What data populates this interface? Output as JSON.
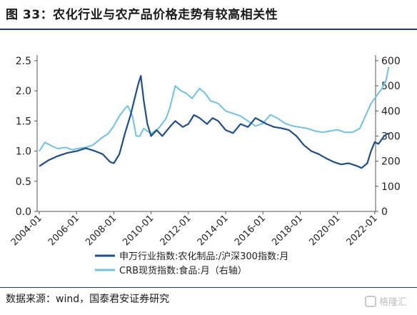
{
  "figure": {
    "title": "图 33：农化行业与农产品价格走势有较高相关性",
    "source": "数据来源：wind，国泰君安证券研究",
    "watermark": "格隆汇"
  },
  "colors": {
    "series1": "#1f4e8c",
    "series2": "#6ec1e4",
    "rule": "#1f3a6b",
    "axis": "#555555"
  },
  "chart_data": {
    "type": "line",
    "x_tick_labels": [
      "2004-01",
      "2006-01",
      "2008-01",
      "2010-01",
      "2012-01",
      "2014-01",
      "2016-01",
      "2018-01",
      "2020-01",
      "2022-01"
    ],
    "y_left": {
      "ylim": [
        0,
        2.5
      ],
      "ticks": [
        "0.0",
        "0.5",
        "1.0",
        "1.5",
        "2.0",
        "2.5"
      ]
    },
    "y_right": {
      "ylim": [
        0,
        600
      ],
      "ticks": [
        "0",
        "100",
        "200",
        "300",
        "400",
        "500",
        "600"
      ]
    },
    "grid": false,
    "legend_position": "bottom-center",
    "series": [
      {
        "name": "申万行业指数:农化制品:/沪深300指数:月",
        "axis": "left",
        "points": [
          [
            2004.0,
            0.75
          ],
          [
            2004.5,
            0.85
          ],
          [
            2005.0,
            0.92
          ],
          [
            2005.5,
            0.97
          ],
          [
            2006.0,
            1.0
          ],
          [
            2006.5,
            1.05
          ],
          [
            2007.0,
            1.0
          ],
          [
            2007.4,
            0.95
          ],
          [
            2007.8,
            0.82
          ],
          [
            2008.0,
            0.8
          ],
          [
            2008.3,
            0.95
          ],
          [
            2008.6,
            1.3
          ],
          [
            2008.9,
            1.6
          ],
          [
            2009.1,
            1.85
          ],
          [
            2009.3,
            2.1
          ],
          [
            2009.45,
            2.25
          ],
          [
            2009.6,
            1.85
          ],
          [
            2009.8,
            1.45
          ],
          [
            2010.0,
            1.25
          ],
          [
            2010.3,
            1.35
          ],
          [
            2010.6,
            1.25
          ],
          [
            2011.0,
            1.4
          ],
          [
            2011.3,
            1.5
          ],
          [
            2011.7,
            1.4
          ],
          [
            2012.0,
            1.45
          ],
          [
            2012.3,
            1.6
          ],
          [
            2012.6,
            1.55
          ],
          [
            2013.0,
            1.45
          ],
          [
            2013.3,
            1.55
          ],
          [
            2013.6,
            1.5
          ],
          [
            2014.0,
            1.35
          ],
          [
            2014.4,
            1.3
          ],
          [
            2014.8,
            1.45
          ],
          [
            2015.2,
            1.4
          ],
          [
            2015.6,
            1.55
          ],
          [
            2015.9,
            1.5
          ],
          [
            2016.2,
            1.45
          ],
          [
            2016.6,
            1.4
          ],
          [
            2017.0,
            1.38
          ],
          [
            2017.4,
            1.35
          ],
          [
            2017.8,
            1.25
          ],
          [
            2018.2,
            1.1
          ],
          [
            2018.6,
            1.0
          ],
          [
            2019.0,
            0.95
          ],
          [
            2019.4,
            0.88
          ],
          [
            2019.8,
            0.82
          ],
          [
            2020.2,
            0.78
          ],
          [
            2020.6,
            0.8
          ],
          [
            2021.0,
            0.76
          ],
          [
            2021.3,
            0.72
          ],
          [
            2021.6,
            0.8
          ],
          [
            2021.8,
            1.0
          ],
          [
            2022.0,
            1.15
          ],
          [
            2022.2,
            1.12
          ],
          [
            2022.5,
            1.25
          ],
          [
            2022.75,
            1.3
          ]
        ]
      },
      {
        "name": "CRB现货指数:食品:月（右轴）",
        "axis": "right",
        "points": [
          [
            2004.0,
            240
          ],
          [
            2004.3,
            275
          ],
          [
            2004.7,
            260
          ],
          [
            2005.0,
            250
          ],
          [
            2005.4,
            255
          ],
          [
            2005.8,
            245
          ],
          [
            2006.0,
            250
          ],
          [
            2006.5,
            255
          ],
          [
            2006.9,
            265
          ],
          [
            2007.3,
            290
          ],
          [
            2007.7,
            310
          ],
          [
            2008.0,
            340
          ],
          [
            2008.3,
            380
          ],
          [
            2008.6,
            410
          ],
          [
            2008.75,
            420
          ],
          [
            2009.0,
            380
          ],
          [
            2009.2,
            300
          ],
          [
            2009.4,
            300
          ],
          [
            2009.6,
            330
          ],
          [
            2010.0,
            310
          ],
          [
            2010.4,
            330
          ],
          [
            2010.8,
            370
          ],
          [
            2011.0,
            410
          ],
          [
            2011.3,
            500
          ],
          [
            2011.6,
            480
          ],
          [
            2011.9,
            470
          ],
          [
            2012.2,
            450
          ],
          [
            2012.6,
            490
          ],
          [
            2012.9,
            470
          ],
          [
            2013.2,
            440
          ],
          [
            2013.6,
            430
          ],
          [
            2014.0,
            400
          ],
          [
            2014.4,
            390
          ],
          [
            2014.8,
            380
          ],
          [
            2015.2,
            360
          ],
          [
            2015.6,
            340
          ],
          [
            2016.0,
            350
          ],
          [
            2016.4,
            385
          ],
          [
            2016.8,
            370
          ],
          [
            2017.2,
            350
          ],
          [
            2017.6,
            340
          ],
          [
            2018.0,
            335
          ],
          [
            2018.4,
            330
          ],
          [
            2018.8,
            320
          ],
          [
            2019.2,
            315
          ],
          [
            2019.6,
            320
          ],
          [
            2020.0,
            325
          ],
          [
            2020.4,
            315
          ],
          [
            2020.8,
            315
          ],
          [
            2021.2,
            330
          ],
          [
            2021.5,
            380
          ],
          [
            2021.8,
            430
          ],
          [
            2022.1,
            460
          ],
          [
            2022.4,
            490
          ],
          [
            2022.6,
            520
          ],
          [
            2022.75,
            575
          ]
        ]
      }
    ]
  }
}
